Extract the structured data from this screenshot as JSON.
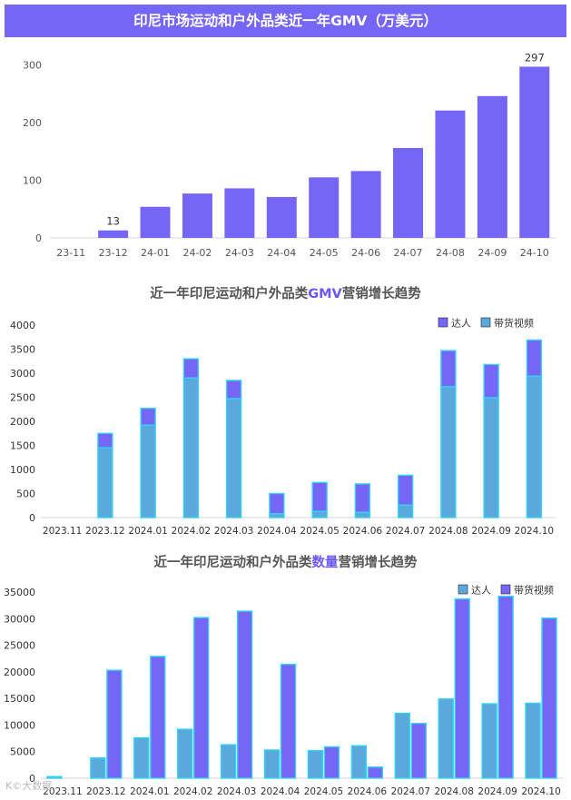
{
  "banner_title": "印尼市场运动和户外品类近一年GMV（万美元）",
  "chart2_title": {
    "pre": "近一年印尼运动和户外品类",
    "hl": "GMV",
    "post": "营销增长趋势"
  },
  "chart3_title": {
    "pre": "近一年印尼运动和户外品类",
    "hl": "数量",
    "post": "营销增长趋势"
  },
  "watermark": "K©大数据",
  "colors": {
    "primary": "#7566f5",
    "secondary": "#5ba8dd",
    "secondary_edge": "#35d2f5",
    "highlight": "#6b58f0"
  },
  "chart_data": [
    {
      "type": "bar",
      "title": "印尼市场运动和户外品类近一年GMV（万美元）",
      "categories": [
        "23-11",
        "23-12",
        "24-01",
        "24-02",
        "24-03",
        "24-04",
        "24-05",
        "24-06",
        "24-07",
        "24-08",
        "24-09",
        "24-10"
      ],
      "values": [
        0,
        13,
        54,
        77,
        86,
        71,
        105,
        116,
        156,
        221,
        246,
        297
      ],
      "data_labels": {
        "23-12": "13",
        "24-10": "297"
      },
      "yticks": [
        0,
        100,
        200,
        300
      ],
      "ylim": [
        0,
        315
      ],
      "grid": false,
      "color": "#7566f5"
    },
    {
      "type": "bar",
      "stacked": true,
      "title": "近一年印尼运动和户外品类GMV营销增长趋势",
      "categories": [
        "2023.11",
        "2023.12",
        "2024.01",
        "2024.02",
        "2024.03",
        "2024.04",
        "2024.05",
        "2024.06",
        "2024.07",
        "2024.08",
        "2024.09",
        "2024.10"
      ],
      "series": [
        {
          "name": "带货视频",
          "values": [
            0,
            1450,
            1920,
            2900,
            2470,
            80,
            130,
            110,
            260,
            2720,
            2490,
            2940
          ],
          "color": "#5ba8dd"
        },
        {
          "name": "达人",
          "values": [
            0,
            300,
            350,
            400,
            380,
            420,
            600,
            590,
            620,
            750,
            690,
            750
          ],
          "color": "#7566f5"
        }
      ],
      "yticks": [
        0,
        500,
        1000,
        1500,
        2000,
        2500,
        3000,
        3500,
        4000
      ],
      "ylim": [
        0,
        4000
      ],
      "legend": "top-right",
      "grid": false
    },
    {
      "type": "bar",
      "title": "近一年印尼运动和户外品类数量营销增长趋势",
      "categories": [
        "2023.11",
        "2023.12",
        "2024.01",
        "2024.02",
        "2024.03",
        "2024.04",
        "2024.05",
        "2024.06",
        "2024.07",
        "2024.08",
        "2024.09",
        "2024.10"
      ],
      "series": [
        {
          "name": "达人",
          "values": [
            300,
            3800,
            7600,
            9200,
            6300,
            5300,
            5200,
            6100,
            12200,
            14900,
            14000,
            14100
          ],
          "color": "#5ba8dd"
        },
        {
          "name": "带货视频",
          "values": [
            0,
            20300,
            22900,
            30200,
            31400,
            21400,
            5900,
            2100,
            10300,
            33700,
            34200,
            30100
          ],
          "color": "#7566f5"
        }
      ],
      "legend_labels": [
        "达人",
        "带货视频"
      ],
      "yticks": [
        0,
        5000,
        10000,
        15000,
        20000,
        25000,
        30000,
        35000
      ],
      "ylim": [
        0,
        35000
      ],
      "legend": "top-right",
      "grid": false
    }
  ]
}
